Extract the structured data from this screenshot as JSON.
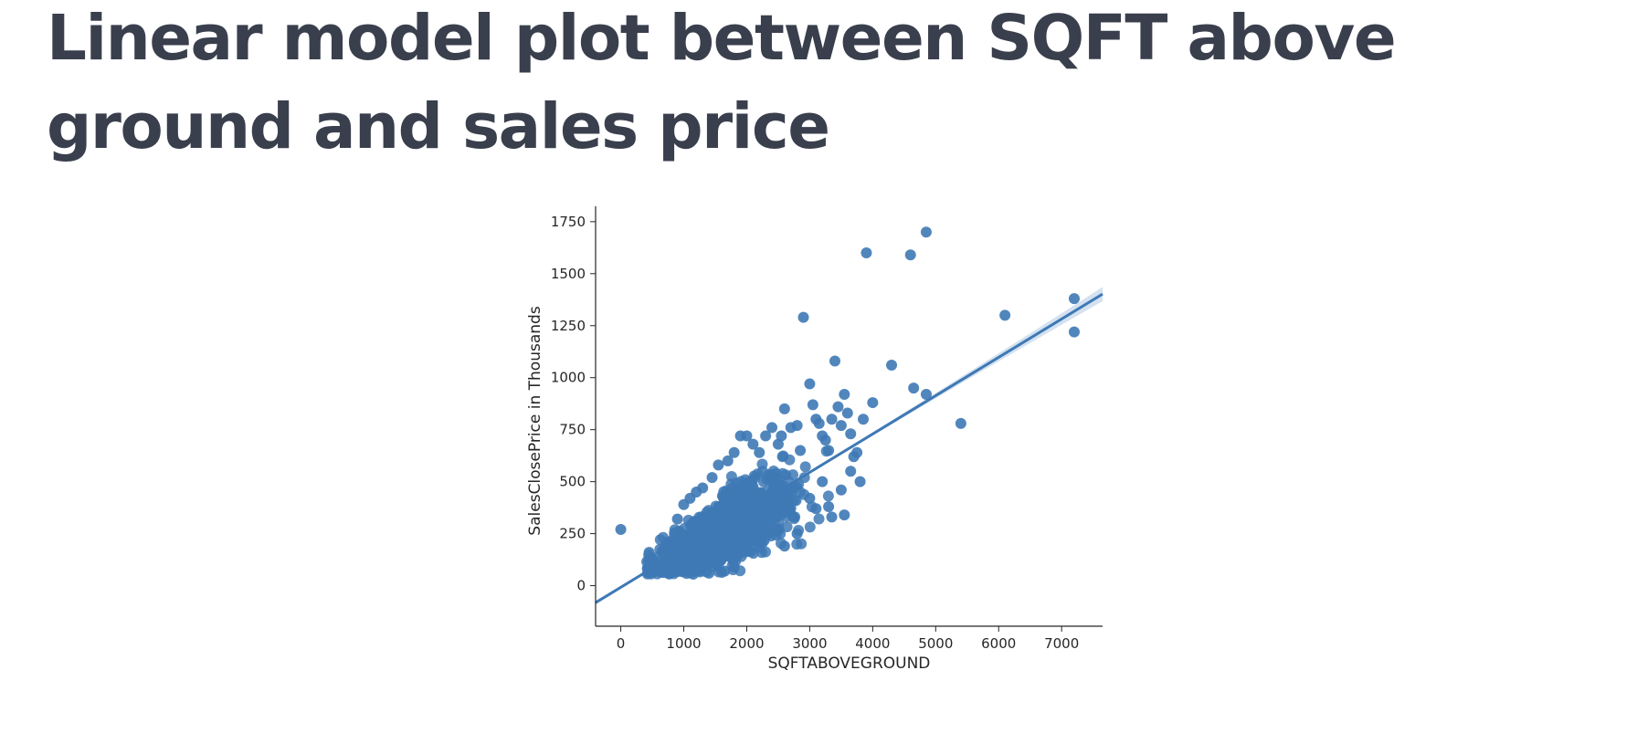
{
  "title": "Linear model plot between SQFT above ground and sales price",
  "colors": {
    "point": "#3e79b5",
    "line": "#3e79b5",
    "ci_band": "#c9d9ec",
    "axis": "#262626",
    "title": "#3a3f4d"
  },
  "chart_data": {
    "type": "scatter",
    "title": "",
    "xlabel": "SQFTABOVEGROUND",
    "ylabel": "SalesClosePrice in Thousands",
    "xlim": [
      -400,
      7650
    ],
    "ylim": [
      -195,
      1780
    ],
    "xticks": [
      0,
      1000,
      2000,
      3000,
      4000,
      5000,
      6000,
      7000
    ],
    "yticks": [
      0,
      250,
      500,
      750,
      1000,
      1250,
      1500,
      1750
    ],
    "grid": false,
    "legend": "none",
    "regression": {
      "slope": 0.1843,
      "intercept": -8,
      "ci_halfwidth_at_edges": 30
    },
    "dense_cluster": {
      "description_hidden": true,
      "x_range": [
        400,
        3700
      ],
      "approx_count": 1100
    },
    "points": [
      [
        0,
        270
      ],
      [
        750,
        210
      ],
      [
        900,
        320
      ],
      [
        1000,
        390
      ],
      [
        1100,
        420
      ],
      [
        1200,
        450
      ],
      [
        1300,
        470
      ],
      [
        1450,
        520
      ],
      [
        1550,
        580
      ],
      [
        1700,
        600
      ],
      [
        1800,
        640
      ],
      [
        1900,
        720
      ],
      [
        2000,
        720
      ],
      [
        2100,
        680
      ],
      [
        2200,
        640
      ],
      [
        2300,
        720
      ],
      [
        2400,
        760
      ],
      [
        2500,
        680
      ],
      [
        2550,
        720
      ],
      [
        2600,
        850
      ],
      [
        2700,
        760
      ],
      [
        2800,
        770
      ],
      [
        2850,
        650
      ],
      [
        2900,
        1290
      ],
      [
        3000,
        970
      ],
      [
        3050,
        870
      ],
      [
        3100,
        800
      ],
      [
        3150,
        780
      ],
      [
        3200,
        720
      ],
      [
        3250,
        700
      ],
      [
        3300,
        650
      ],
      [
        3350,
        800
      ],
      [
        3400,
        1080
      ],
      [
        3450,
        860
      ],
      [
        3500,
        770
      ],
      [
        3550,
        920
      ],
      [
        3600,
        830
      ],
      [
        3650,
        730
      ],
      [
        3700,
        620
      ],
      [
        3750,
        640
      ],
      [
        3800,
        500
      ],
      [
        3850,
        800
      ],
      [
        3900,
        1600
      ],
      [
        4000,
        880
      ],
      [
        4300,
        1060
      ],
      [
        4600,
        1590
      ],
      [
        4650,
        950
      ],
      [
        4850,
        920
      ],
      [
        4850,
        1700
      ],
      [
        5400,
        780
      ],
      [
        6100,
        1300
      ],
      [
        7200,
        1380
      ],
      [
        7200,
        1220
      ],
      [
        2600,
        190
      ],
      [
        2800,
        250
      ],
      [
        3100,
        370
      ],
      [
        3300,
        380
      ],
      [
        3500,
        460
      ],
      [
        3550,
        340
      ],
      [
        3350,
        330
      ],
      [
        3000,
        420
      ],
      [
        3200,
        500
      ],
      [
        3650,
        550
      ],
      [
        2300,
        320
      ],
      [
        2100,
        260
      ],
      [
        1900,
        180
      ],
      [
        1800,
        90
      ],
      [
        1650,
        70
      ],
      [
        1550,
        110
      ],
      [
        1400,
        60
      ],
      [
        1250,
        80
      ],
      [
        1050,
        120
      ],
      [
        1150,
        55
      ],
      [
        600,
        80
      ],
      [
        500,
        130
      ],
      [
        450,
        160
      ],
      [
        520,
        100
      ]
    ]
  }
}
